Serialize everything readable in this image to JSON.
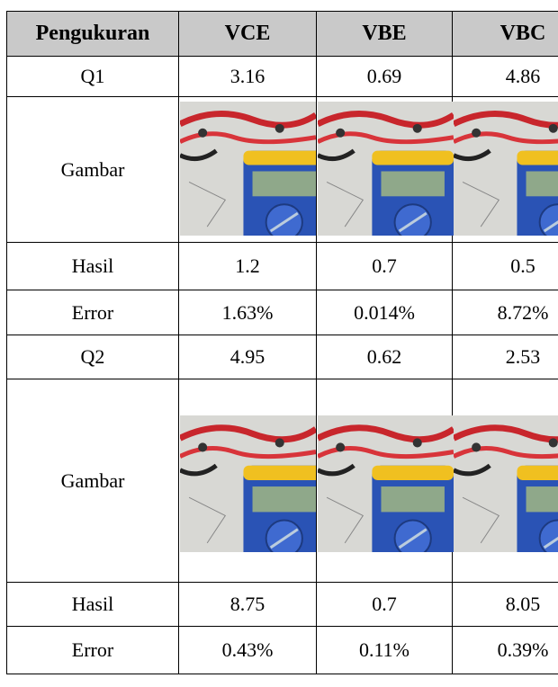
{
  "table": {
    "header": [
      "Pengukuran",
      "VCE",
      "VBE",
      "VBC"
    ],
    "rows": [
      [
        "Q1",
        "3.16",
        "0.69",
        "4.86"
      ],
      [
        "Gambar"
      ],
      [
        "Hasil",
        "1.2",
        "0.7",
        "0.5"
      ],
      [
        "Error",
        "1.63%",
        "0.014%",
        "8.72%"
      ],
      [
        "Q2",
        "4.95",
        "0.62",
        "2.53"
      ],
      [
        "Gambar"
      ],
      [
        "Hasil",
        "8.75",
        "0.7",
        "8.05"
      ],
      [
        "Error",
        "0.43%",
        "0.11%",
        "0.39%"
      ]
    ]
  }
}
